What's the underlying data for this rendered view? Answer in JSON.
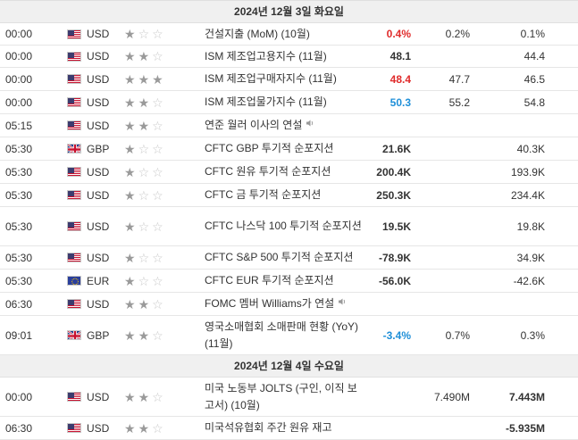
{
  "days": [
    {
      "header": "2024년 12월 3일 화요일",
      "rows": [
        {
          "time": "00:00",
          "flag": "us",
          "currency": "USD",
          "importance": 1,
          "event": "건설지출 (MoM) (10월)",
          "actual": "0.4%",
          "actual_color": "red",
          "forecast": "0.2%",
          "previous": "0.1%",
          "speaker": false,
          "height": 25
        },
        {
          "time": "00:00",
          "flag": "us",
          "currency": "USD",
          "importance": 2,
          "event": "ISM 제조업고용지수 (11월)",
          "actual": "48.1",
          "actual_color": "black",
          "forecast": "",
          "previous": "44.4",
          "speaker": false,
          "height": 25
        },
        {
          "time": "00:00",
          "flag": "us",
          "currency": "USD",
          "importance": 3,
          "event": "ISM 제조업구매자지수 (11월)",
          "actual": "48.4",
          "actual_color": "red",
          "forecast": "47.7",
          "previous": "46.5",
          "speaker": false,
          "height": 26
        },
        {
          "time": "00:00",
          "flag": "us",
          "currency": "USD",
          "importance": 2,
          "event": "ISM 제조업물가지수 (11월)",
          "actual": "50.3",
          "actual_color": "blue",
          "forecast": "55.2",
          "previous": "54.8",
          "speaker": false,
          "height": 26
        },
        {
          "time": "05:15",
          "flag": "us",
          "currency": "USD",
          "importance": 2,
          "event": "연준 월러 이사의 연설",
          "actual": "",
          "actual_color": "black",
          "forecast": "",
          "previous": "",
          "speaker": true,
          "height": 26
        },
        {
          "time": "05:30",
          "flag": "gb",
          "currency": "GBP",
          "importance": 1,
          "event": "CFTC GBP 투기적 순포지션",
          "actual": "21.6K",
          "actual_color": "black",
          "forecast": "",
          "previous": "40.3K",
          "speaker": false,
          "height": 26
        },
        {
          "time": "05:30",
          "flag": "us",
          "currency": "USD",
          "importance": 1,
          "event": "CFTC 원유 투기적 순포지션",
          "actual": "200.4K",
          "actual_color": "black",
          "forecast": "",
          "previous": "193.9K",
          "speaker": false,
          "height": 26
        },
        {
          "time": "05:30",
          "flag": "us",
          "currency": "USD",
          "importance": 1,
          "event": "CFTC 금 투기적 순포지션",
          "actual": "250.3K",
          "actual_color": "black",
          "forecast": "",
          "previous": "234.4K",
          "speaker": false,
          "height": 26
        },
        {
          "time": "05:30",
          "flag": "us",
          "currency": "USD",
          "importance": 1,
          "event": "CFTC 나스닥 100 투기적 순포지션",
          "actual": "19.5K",
          "actual_color": "black",
          "forecast": "",
          "previous": "19.8K",
          "speaker": false,
          "height": 44
        },
        {
          "time": "05:30",
          "flag": "us",
          "currency": "USD",
          "importance": 1,
          "event": "CFTC S&P 500 투기적 순포지션",
          "actual": "-78.9K",
          "actual_color": "black",
          "forecast": "",
          "previous": "34.9K",
          "speaker": false,
          "height": 26
        },
        {
          "time": "05:30",
          "flag": "eu",
          "currency": "EUR",
          "importance": 1,
          "event": "CFTC EUR 투기적 순포지션",
          "actual": "-56.0K",
          "actual_color": "black",
          "forecast": "",
          "previous": "-42.6K",
          "speaker": false,
          "height": 26
        },
        {
          "time": "06:30",
          "flag": "us",
          "currency": "USD",
          "importance": 2,
          "event": "FOMC 멤버 Williams가 연설",
          "actual": "",
          "actual_color": "black",
          "forecast": "",
          "previous": "",
          "speaker": true,
          "height": 26
        },
        {
          "time": "09:01",
          "flag": "gb",
          "currency": "GBP",
          "importance": 2,
          "event": "영국소매협회 소매판매 현황 (YoY) (11월)",
          "actual": "-3.4%",
          "actual_color": "blue",
          "forecast": "0.7%",
          "previous": "0.3%",
          "speaker": false,
          "height": 44
        }
      ]
    },
    {
      "header": "2024년 12월 4일 수요일",
      "rows": [
        {
          "time": "00:00",
          "flag": "us",
          "currency": "USD",
          "importance": 2,
          "event": "미국 노동부 JOLTS (구인, 이직 보고서) (10월)",
          "actual": "",
          "actual_color": "black",
          "forecast": "7.490M",
          "previous": "7.443M",
          "previous_bold": true,
          "speaker": false,
          "height": 44
        },
        {
          "time": "06:30",
          "flag": "us",
          "currency": "USD",
          "importance": 2,
          "event": "미국석유협회 주간 원유 재고",
          "actual": "",
          "actual_color": "black",
          "forecast": "",
          "previous": "-5.935M",
          "previous_bold": true,
          "speaker": false,
          "height": 26
        }
      ]
    }
  ],
  "colors": {
    "red": "#e02b2b",
    "blue": "#1e8fd8"
  },
  "icons": {
    "star_full": "star-filled-icon",
    "star_empty": "star-outline-icon",
    "speaker": "speaker-icon"
  }
}
